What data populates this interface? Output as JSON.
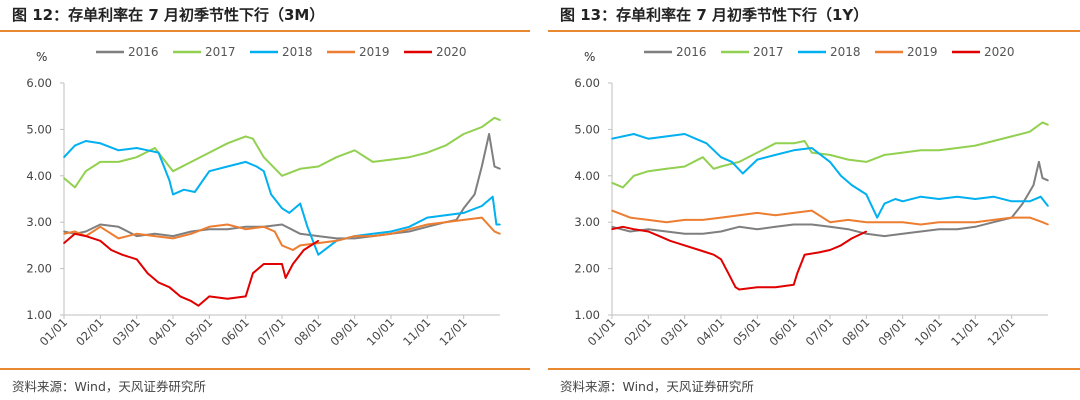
{
  "charts": [
    {
      "title": "图 12：存单利率在 7 月初季节性下行（3M）",
      "source": "资料来源：Wind，天风证券研究所"
    },
    {
      "title": "图 13：存单利率在 7 月初季节性下行（1Y）",
      "source": "资料来源：Wind，天风证券研究所"
    }
  ],
  "chart_data": [
    {
      "type": "line",
      "title": "图 12：存单利率在 7 月初季节性下行（3M）",
      "ylabel": "%",
      "xlabel": "",
      "ylim": [
        1.0,
        6.0
      ],
      "yticks": [
        "1.00",
        "2.00",
        "3.00",
        "4.00",
        "5.00",
        "6.00"
      ],
      "xlim": [
        1,
        13
      ],
      "xticks": [
        "01/01",
        "02/01",
        "03/01",
        "04/01",
        "05/01",
        "06/01",
        "07/01",
        "08/01",
        "09/01",
        "10/01",
        "11/01",
        "12/01"
      ],
      "legend_position": "top",
      "grid": false,
      "series": [
        {
          "name": "2016",
          "color": "#7f7f7f",
          "x": [
            1.0,
            1.3,
            1.6,
            2.0,
            2.5,
            3.0,
            3.5,
            4.0,
            4.5,
            5.0,
            5.5,
            6.0,
            6.5,
            7.0,
            7.5,
            8.0,
            8.5,
            9.0,
            9.5,
            10.0,
            10.5,
            11.0,
            11.5,
            11.8,
            12.0,
            12.3,
            12.5,
            12.7,
            12.85,
            13.0
          ],
          "y": [
            2.8,
            2.75,
            2.8,
            2.95,
            2.9,
            2.7,
            2.75,
            2.7,
            2.8,
            2.85,
            2.85,
            2.9,
            2.9,
            2.95,
            2.75,
            2.7,
            2.65,
            2.65,
            2.7,
            2.75,
            2.8,
            2.9,
            3.0,
            3.05,
            3.3,
            3.6,
            4.2,
            4.9,
            4.2,
            4.15
          ]
        },
        {
          "name": "2017",
          "color": "#92d050",
          "x": [
            1.0,
            1.3,
            1.6,
            2.0,
            2.5,
            3.0,
            3.5,
            4.0,
            4.5,
            5.0,
            5.5,
            6.0,
            6.2,
            6.5,
            7.0,
            7.5,
            8.0,
            8.5,
            9.0,
            9.5,
            10.0,
            10.5,
            11.0,
            11.5,
            12.0,
            12.5,
            12.85,
            13.0
          ],
          "y": [
            3.95,
            3.75,
            4.1,
            4.3,
            4.3,
            4.4,
            4.6,
            4.1,
            4.3,
            4.5,
            4.7,
            4.85,
            4.8,
            4.4,
            4.0,
            4.15,
            4.2,
            4.4,
            4.55,
            4.3,
            4.35,
            4.4,
            4.5,
            4.65,
            4.9,
            5.05,
            5.25,
            5.2
          ]
        },
        {
          "name": "2018",
          "color": "#00b0f0",
          "x": [
            1.0,
            1.3,
            1.6,
            2.0,
            2.5,
            3.0,
            3.3,
            3.6,
            3.9,
            4.0,
            4.3,
            4.6,
            5.0,
            5.5,
            6.0,
            6.3,
            6.5,
            6.7,
            7.0,
            7.2,
            7.5,
            7.7,
            8.0,
            8.5,
            9.0,
            9.5,
            10.0,
            10.5,
            11.0,
            11.5,
            12.0,
            12.5,
            12.8,
            12.9,
            13.0
          ],
          "y": [
            4.4,
            4.65,
            4.75,
            4.7,
            4.55,
            4.6,
            4.55,
            4.5,
            3.9,
            3.6,
            3.7,
            3.65,
            4.1,
            4.2,
            4.3,
            4.2,
            4.1,
            3.6,
            3.3,
            3.2,
            3.4,
            2.9,
            2.3,
            2.6,
            2.7,
            2.75,
            2.8,
            2.9,
            3.1,
            3.15,
            3.2,
            3.35,
            3.55,
            2.95,
            2.95
          ]
        },
        {
          "name": "2019",
          "color": "#ed7d31",
          "x": [
            1.0,
            1.3,
            1.6,
            2.0,
            2.5,
            3.0,
            3.5,
            4.0,
            4.5,
            5.0,
            5.5,
            6.0,
            6.5,
            6.8,
            7.0,
            7.3,
            7.5,
            8.0,
            8.5,
            9.0,
            9.5,
            10.0,
            10.5,
            11.0,
            11.5,
            12.0,
            12.5,
            12.85,
            13.0
          ],
          "y": [
            2.75,
            2.8,
            2.7,
            2.9,
            2.65,
            2.75,
            2.7,
            2.65,
            2.75,
            2.9,
            2.95,
            2.85,
            2.9,
            2.8,
            2.5,
            2.4,
            2.5,
            2.55,
            2.6,
            2.7,
            2.7,
            2.75,
            2.85,
            2.95,
            3.0,
            3.05,
            3.1,
            2.8,
            2.75
          ]
        },
        {
          "name": "2020",
          "color": "#e00000",
          "x": [
            1.0,
            1.3,
            1.6,
            2.0,
            2.3,
            2.6,
            3.0,
            3.3,
            3.6,
            3.9,
            4.2,
            4.5,
            4.7,
            5.0,
            5.5,
            6.0,
            6.2,
            6.5,
            7.0,
            7.1,
            7.3,
            7.6,
            8.0
          ],
          "y": [
            2.55,
            2.75,
            2.7,
            2.6,
            2.4,
            2.3,
            2.2,
            1.9,
            1.7,
            1.6,
            1.4,
            1.3,
            1.2,
            1.4,
            1.35,
            1.4,
            1.9,
            2.1,
            2.1,
            1.8,
            2.1,
            2.4,
            2.6
          ]
        }
      ]
    },
    {
      "type": "line",
      "title": "图 13：存单利率在 7 月初季节性下行（1Y）",
      "ylabel": "%",
      "xlabel": "",
      "ylim": [
        1.0,
        6.0
      ],
      "yticks": [
        "1.00",
        "2.00",
        "3.00",
        "4.00",
        "5.00",
        "6.00"
      ],
      "xlim": [
        1,
        13
      ],
      "xticks": [
        "01/01",
        "02/01",
        "03/01",
        "04/01",
        "05/01",
        "06/01",
        "07/01",
        "08/01",
        "09/01",
        "10/01",
        "11/01",
        "12/01"
      ],
      "legend_position": "top",
      "grid": false,
      "series": [
        {
          "name": "2016",
          "color": "#7f7f7f",
          "x": [
            1.0,
            1.5,
            2.0,
            2.5,
            3.0,
            3.5,
            4.0,
            4.5,
            5.0,
            5.5,
            6.0,
            6.5,
            7.0,
            7.5,
            8.0,
            8.5,
            9.0,
            9.5,
            10.0,
            10.5,
            11.0,
            11.5,
            12.0,
            12.3,
            12.6,
            12.75,
            12.85,
            13.0
          ],
          "y": [
            2.9,
            2.8,
            2.85,
            2.8,
            2.75,
            2.75,
            2.8,
            2.9,
            2.85,
            2.9,
            2.95,
            2.95,
            2.9,
            2.85,
            2.75,
            2.7,
            2.75,
            2.8,
            2.85,
            2.85,
            2.9,
            3.0,
            3.1,
            3.4,
            3.8,
            4.3,
            3.95,
            3.9
          ]
        },
        {
          "name": "2017",
          "color": "#92d050",
          "x": [
            1.0,
            1.3,
            1.6,
            2.0,
            2.5,
            3.0,
            3.5,
            3.8,
            4.0,
            4.5,
            5.0,
            5.5,
            6.0,
            6.3,
            6.5,
            7.0,
            7.5,
            8.0,
            8.5,
            9.0,
            9.5,
            10.0,
            10.5,
            11.0,
            11.5,
            12.0,
            12.5,
            12.85,
            13.0
          ],
          "y": [
            3.85,
            3.75,
            4.0,
            4.1,
            4.15,
            4.2,
            4.4,
            4.15,
            4.2,
            4.3,
            4.5,
            4.7,
            4.7,
            4.75,
            4.5,
            4.45,
            4.35,
            4.3,
            4.45,
            4.5,
            4.55,
            4.55,
            4.6,
            4.65,
            4.75,
            4.85,
            4.95,
            5.15,
            5.1
          ]
        },
        {
          "name": "2018",
          "color": "#00b0f0",
          "x": [
            1.0,
            1.3,
            1.6,
            2.0,
            2.5,
            3.0,
            3.3,
            3.6,
            4.0,
            4.3,
            4.6,
            5.0,
            5.5,
            6.0,
            6.5,
            7.0,
            7.3,
            7.6,
            8.0,
            8.3,
            8.5,
            8.8,
            9.0,
            9.5,
            10.0,
            10.5,
            11.0,
            11.5,
            12.0,
            12.5,
            12.8,
            13.0
          ],
          "y": [
            4.8,
            4.85,
            4.9,
            4.8,
            4.85,
            4.9,
            4.8,
            4.7,
            4.4,
            4.3,
            4.05,
            4.35,
            4.45,
            4.55,
            4.6,
            4.3,
            4.0,
            3.8,
            3.6,
            3.1,
            3.4,
            3.5,
            3.45,
            3.55,
            3.5,
            3.55,
            3.5,
            3.55,
            3.45,
            3.45,
            3.55,
            3.35
          ]
        },
        {
          "name": "2019",
          "color": "#ed7d31",
          "x": [
            1.0,
            1.5,
            2.0,
            2.5,
            3.0,
            3.5,
            4.0,
            4.5,
            5.0,
            5.5,
            6.0,
            6.5,
            7.0,
            7.5,
            8.0,
            8.5,
            9.0,
            9.5,
            10.0,
            10.5,
            11.0,
            11.5,
            12.0,
            12.5,
            12.85,
            13.0
          ],
          "y": [
            3.25,
            3.1,
            3.05,
            3.0,
            3.05,
            3.05,
            3.1,
            3.15,
            3.2,
            3.15,
            3.2,
            3.25,
            3.0,
            3.05,
            3.0,
            3.0,
            3.0,
            2.95,
            3.0,
            3.0,
            3.0,
            3.05,
            3.1,
            3.1,
            3.0,
            2.95
          ]
        },
        {
          "name": "2020",
          "color": "#e00000",
          "x": [
            1.0,
            1.3,
            1.6,
            2.0,
            2.3,
            2.6,
            3.0,
            3.4,
            3.8,
            4.0,
            4.2,
            4.4,
            4.5,
            5.0,
            5.5,
            6.0,
            6.1,
            6.3,
            6.7,
            7.0,
            7.3,
            7.6,
            8.0
          ],
          "y": [
            2.85,
            2.9,
            2.85,
            2.8,
            2.7,
            2.6,
            2.5,
            2.4,
            2.3,
            2.2,
            1.9,
            1.6,
            1.55,
            1.6,
            1.6,
            1.65,
            1.9,
            2.3,
            2.35,
            2.4,
            2.5,
            2.65,
            2.8
          ]
        }
      ]
    }
  ]
}
